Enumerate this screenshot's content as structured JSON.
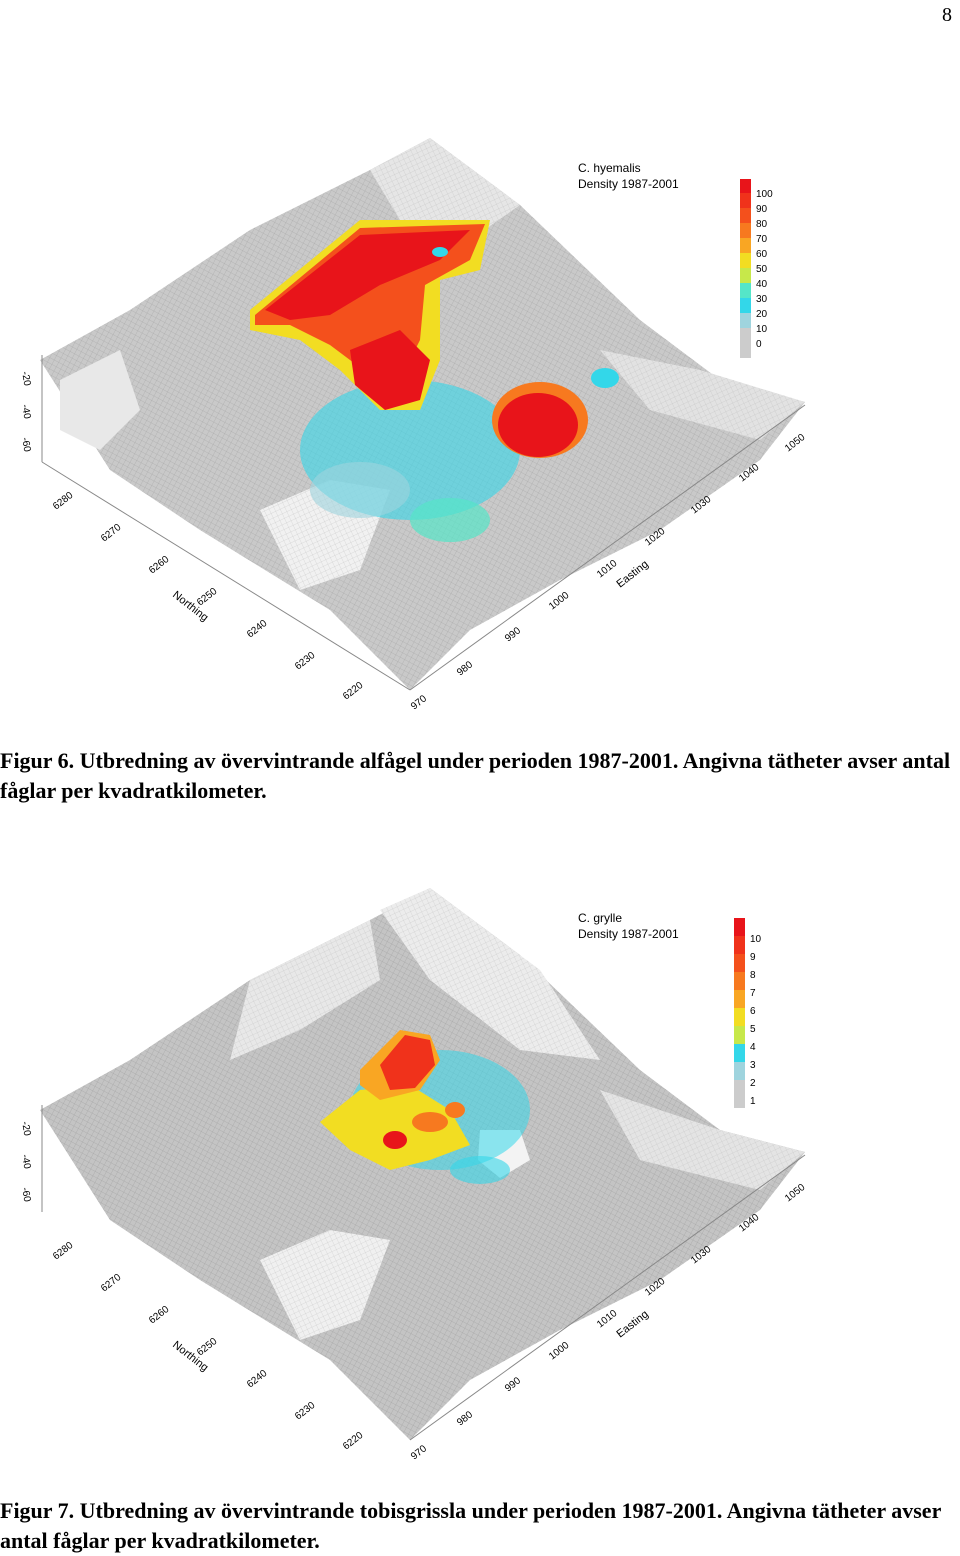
{
  "page": {
    "number": "8"
  },
  "figures": [
    {
      "species": "C. hyemalis",
      "density_label": "Density 1987-2001",
      "legend_values": [
        "100",
        "90",
        "80",
        "70",
        "60",
        "50",
        "40",
        "30",
        "20",
        "10",
        "0"
      ],
      "legend_colors": [
        "#e8141a",
        "#f0321b",
        "#f4501c",
        "#f7791f",
        "#f9a623",
        "#f2dd22",
        "#c7e84a",
        "#55e6c8",
        "#33d7e9",
        "#9fd4de",
        "#cccccc"
      ],
      "northing_ticks": [
        "6280",
        "6270",
        "6260",
        "6250",
        "6240",
        "6230",
        "6220"
      ],
      "easting_ticks": [
        "970",
        "980",
        "990",
        "1000",
        "1010",
        "1020",
        "1030",
        "1040",
        "1050"
      ],
      "depth_ticks": [
        "-20",
        "-40",
        "-60"
      ],
      "northing_label": "Northing",
      "easting_label": "Easting",
      "caption_label": "Figur 6.",
      "caption_text": "Utbredning av övervintrande alfågel under perioden 1987-2001. Angivna tätheter avser antal fåglar per kvadratkilometer."
    },
    {
      "species": "C. grylle",
      "density_label": "Density 1987-2001",
      "legend_values": [
        "10",
        "9",
        "8",
        "7",
        "6",
        "5",
        "4",
        "3",
        "2",
        "1"
      ],
      "legend_colors": [
        "#e8141a",
        "#f0321b",
        "#f4501c",
        "#f7791f",
        "#f9a623",
        "#f2dd22",
        "#c7e84a",
        "#33d7e9",
        "#9fd4de",
        "#cccccc"
      ],
      "northing_ticks": [
        "6280",
        "6270",
        "6260",
        "6250",
        "6240",
        "6230",
        "6220"
      ],
      "easting_ticks": [
        "970",
        "980",
        "990",
        "1000",
        "1010",
        "1020",
        "1030",
        "1040",
        "1050"
      ],
      "depth_ticks": [
        "-20",
        "-40",
        "-60"
      ],
      "northing_label": "Northing",
      "easting_label": "Easting",
      "caption_label": "Figur 7.",
      "caption_text": "Utbredning av övervintrande tobisgrissla under perioden 1987-2001. Angivna tätheter avser antal fåglar per kvadratkilometer."
    }
  ]
}
